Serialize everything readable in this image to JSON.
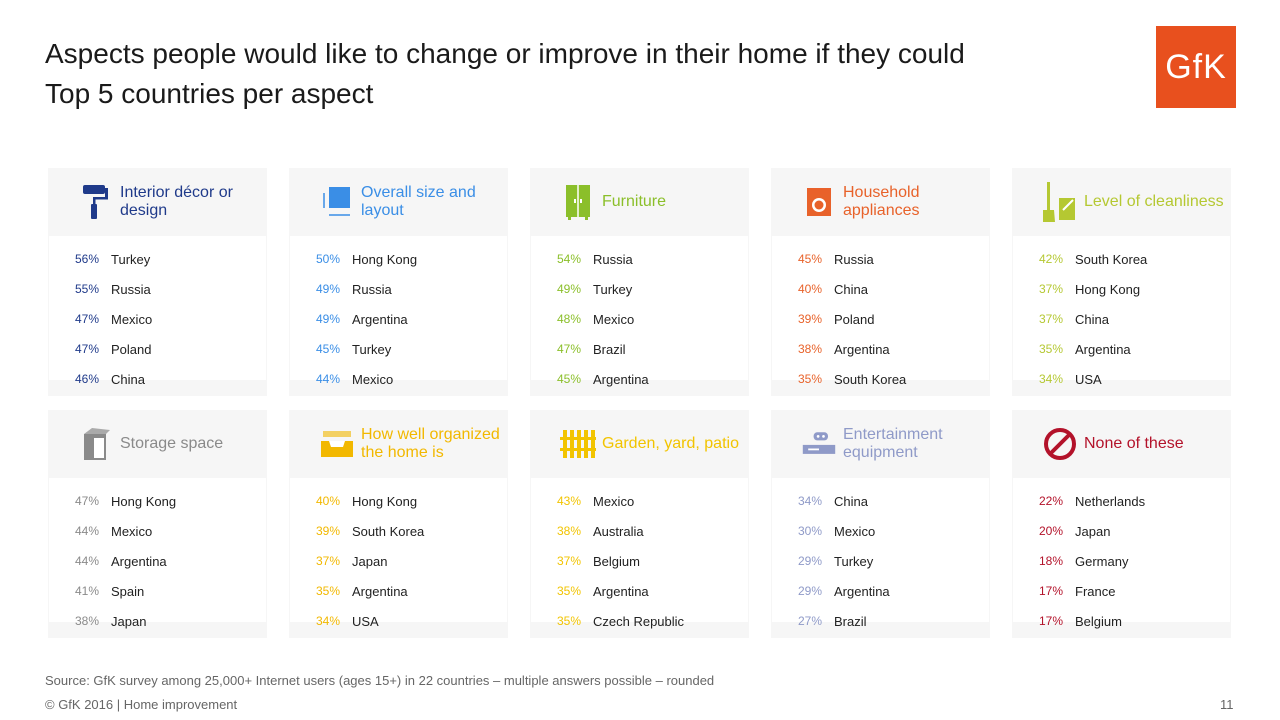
{
  "title": {
    "line1": "Aspects people would like to change or improve in their home if they could",
    "line2": "Top 5 countries per aspect"
  },
  "logo": {
    "text": "GfK",
    "color": "#e8501e"
  },
  "rows": [
    [
      {
        "label": "Interior décor or design",
        "icon": "paint-roller-icon",
        "color": "#1f3a8a",
        "items": [
          {
            "pct": "56%",
            "country": "Turkey"
          },
          {
            "pct": "55%",
            "country": "Russia"
          },
          {
            "pct": "47%",
            "country": "Mexico"
          },
          {
            "pct": "47%",
            "country": "Poland"
          },
          {
            "pct": "46%",
            "country": "China"
          }
        ]
      },
      {
        "label": "Overall size and layout",
        "icon": "floor-plan-icon",
        "color": "#3a8ee6",
        "items": [
          {
            "pct": "50%",
            "country": "Hong Kong"
          },
          {
            "pct": "49%",
            "country": "Russia"
          },
          {
            "pct": "49%",
            "country": "Argentina"
          },
          {
            "pct": "45%",
            "country": "Turkey"
          },
          {
            "pct": "44%",
            "country": "Mexico"
          }
        ]
      },
      {
        "label": "Furniture",
        "icon": "wardrobe-icon",
        "color": "#8bbf2a",
        "items": [
          {
            "pct": "54%",
            "country": "Russia"
          },
          {
            "pct": "49%",
            "country": "Turkey"
          },
          {
            "pct": "48%",
            "country": "Mexico"
          },
          {
            "pct": "47%",
            "country": "Brazil"
          },
          {
            "pct": "45%",
            "country": "Argentina"
          }
        ]
      },
      {
        "label": "Household appliances",
        "icon": "washing-machine-icon",
        "color": "#e8622a",
        "items": [
          {
            "pct": "45%",
            "country": "Russia"
          },
          {
            "pct": "40%",
            "country": "China"
          },
          {
            "pct": "39%",
            "country": "Poland"
          },
          {
            "pct": "38%",
            "country": "Argentina"
          },
          {
            "pct": "35%",
            "country": "South Korea"
          }
        ]
      },
      {
        "label": "Level of cleanliness",
        "icon": "broom-icon",
        "color": "#b5c832",
        "items": [
          {
            "pct": "42%",
            "country": "South Korea"
          },
          {
            "pct": "37%",
            "country": "Hong Kong"
          },
          {
            "pct": "37%",
            "country": "China"
          },
          {
            "pct": "35%",
            "country": "Argentina"
          },
          {
            "pct": "34%",
            "country": "USA"
          }
        ]
      }
    ],
    [
      {
        "label": "Storage space",
        "icon": "box-icon",
        "color": "#8a8a8a",
        "items": [
          {
            "pct": "47%",
            "country": "Hong Kong"
          },
          {
            "pct": "44%",
            "country": "Mexico"
          },
          {
            "pct": "44%",
            "country": "Argentina"
          },
          {
            "pct": "41%",
            "country": "Spain"
          },
          {
            "pct": "38%",
            "country": "Japan"
          }
        ]
      },
      {
        "label": "How well organized the home is",
        "icon": "tray-icon",
        "color": "#f2b800",
        "items": [
          {
            "pct": "40%",
            "country": "Hong Kong"
          },
          {
            "pct": "39%",
            "country": "South Korea"
          },
          {
            "pct": "37%",
            "country": "Japan"
          },
          {
            "pct": "35%",
            "country": "Argentina"
          },
          {
            "pct": "34%",
            "country": "USA"
          }
        ]
      },
      {
        "label": "Garden, yard, patio",
        "icon": "fence-icon",
        "color": "#f2c400",
        "items": [
          {
            "pct": "43%",
            "country": "Mexico"
          },
          {
            "pct": "38%",
            "country": "Australia"
          },
          {
            "pct": "37%",
            "country": "Belgium"
          },
          {
            "pct": "35%",
            "country": "Argentina"
          },
          {
            "pct": "35%",
            "country": "Czech Republic"
          }
        ]
      },
      {
        "label": "Entertainment equipment",
        "icon": "game-console-icon",
        "color": "#8f9ac8",
        "items": [
          {
            "pct": "34%",
            "country": "China"
          },
          {
            "pct": "30%",
            "country": "Mexico"
          },
          {
            "pct": "29%",
            "country": "Turkey"
          },
          {
            "pct": "29%",
            "country": "Argentina"
          },
          {
            "pct": "27%",
            "country": "Brazil"
          }
        ]
      },
      {
        "label": "None of these",
        "icon": "prohibited-icon",
        "color": "#b3122a",
        "items": [
          {
            "pct": "22%",
            "country": "Netherlands"
          },
          {
            "pct": "20%",
            "country": "Japan"
          },
          {
            "pct": "18%",
            "country": "Germany"
          },
          {
            "pct": "17%",
            "country": "France"
          },
          {
            "pct": "17%",
            "country": "Belgium"
          }
        ]
      }
    ]
  ],
  "footer": {
    "source": "Source: GfK survey among 25,000+ Internet users (ages 15+) in 22 countries – multiple answers possible – rounded",
    "copyright": "© GfK 2016 | Home improvement",
    "page": "11"
  }
}
